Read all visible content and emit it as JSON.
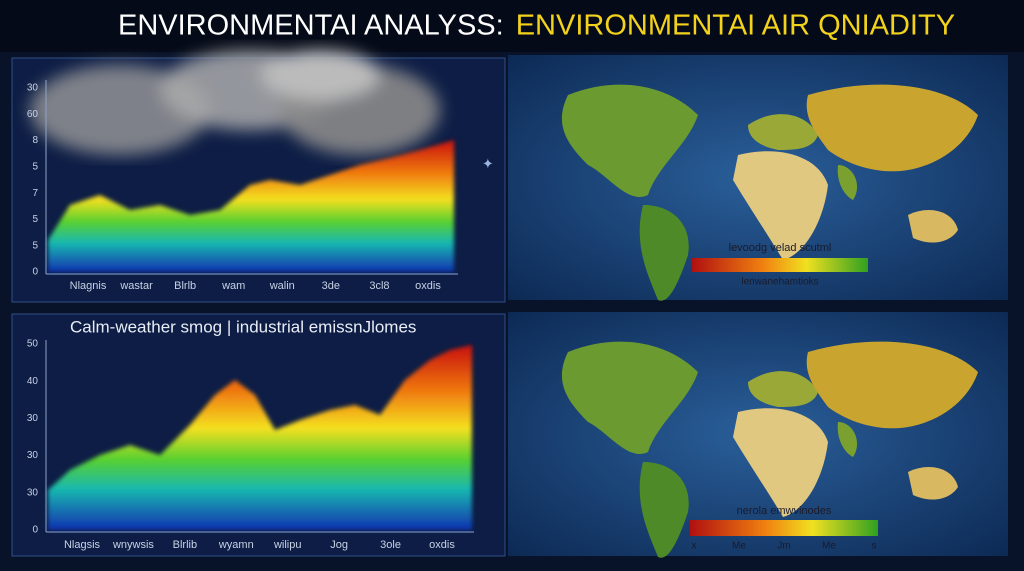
{
  "header": {
    "title_white": "ENVIRONMENTAI ANALYSS:",
    "title_yellow": "ENVIRONMENTAI AIR QNIADITY"
  },
  "top_chart": {
    "y_labels": [
      "30",
      "60",
      "8",
      "5",
      "7",
      "5",
      "5",
      "0"
    ],
    "x_labels": [
      "Nlagnis",
      "wastar",
      "Blrlb",
      "wam",
      "walin",
      "3de",
      "3cl8",
      "oxdis"
    ]
  },
  "top_map": {
    "legend_title": "levoodg velad scutml",
    "legend_caption": "lenwanehamtioks"
  },
  "bottom_chart": {
    "title": "Calm-weather smog | industrial emissnJlomes",
    "y_labels": [
      "50",
      "40",
      "30",
      "30",
      "30",
      "0"
    ],
    "x_labels": [
      "Nlagsis",
      "wnywsis",
      "Blrlib",
      "wyamn",
      "wilipu",
      "Jog",
      "3ole",
      "oxdis"
    ]
  },
  "bottom_map": {
    "legend_title": "nerola emwvinodes",
    "legend_ticks": [
      "x",
      "Me",
      "Jm",
      "Me",
      "s"
    ]
  }
}
